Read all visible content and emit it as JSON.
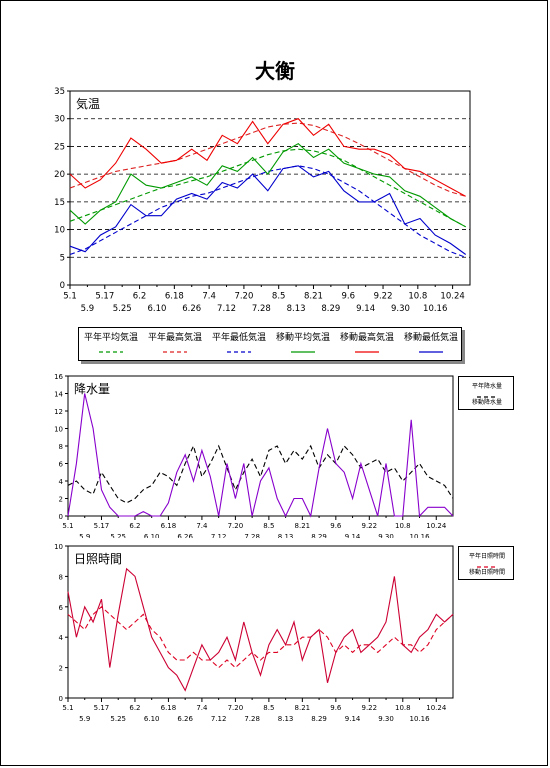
{
  "title": "大衡",
  "colors": {
    "normal_avg": "#009900",
    "normal_max": "#dd2222",
    "normal_min": "#0000cc",
    "obs_avg": "#009900",
    "obs_max": "#ee0000",
    "obs_min": "#0000cc",
    "normal_precip": "#000000",
    "obs_precip": "#8800cc",
    "normal_sun": "#dd0022",
    "obs_sun": "#cc0033"
  },
  "chart_data": [
    {
      "type": "line",
      "title": "気温",
      "ylim": [
        0,
        35
      ],
      "yticks": [
        "0",
        "5",
        "10",
        "15",
        "20",
        "25",
        "30",
        "35"
      ],
      "xticks_top": [
        "5.1",
        "5.17",
        "6.2",
        "6.18",
        "7.4",
        "7.20",
        "8.5",
        "8.21",
        "9.6",
        "9.22",
        "10.8",
        "10.24"
      ],
      "xticks_bottom": [
        "5.9",
        "5.25",
        "6.10",
        "6.26",
        "7.12",
        "7.28",
        "8.13",
        "8.29",
        "9.14",
        "9.30",
        "10.16"
      ],
      "grid": "dashed horizontal",
      "legend_placement": "bottom",
      "x": [
        1,
        8,
        15,
        22,
        29,
        36,
        43,
        50,
        57,
        64,
        71,
        78,
        85,
        92,
        99,
        106,
        113,
        120,
        127,
        134,
        141,
        148,
        155,
        162,
        169,
        176,
        183
      ],
      "series": [
        {
          "name": "平年平均気温",
          "style": "dashed",
          "color_key": "normal_avg",
          "values": [
            11.5,
            12.5,
            13.5,
            14.5,
            15.5,
            16.5,
            17.5,
            18.0,
            18.8,
            19.5,
            20.5,
            21.5,
            22.5,
            23.5,
            24.2,
            24.5,
            24.2,
            23.5,
            22.5,
            21.0,
            19.5,
            18.0,
            16.5,
            15.0,
            13.5,
            12.0,
            10.5
          ]
        },
        {
          "name": "平年最高気温",
          "style": "dashed",
          "color_key": "normal_max",
          "values": [
            17.5,
            18.5,
            19.5,
            20.5,
            21.0,
            21.5,
            22.0,
            22.5,
            23.5,
            24.5,
            25.5,
            26.5,
            27.5,
            28.5,
            29.0,
            29.2,
            28.8,
            27.8,
            26.8,
            25.5,
            24.0,
            22.5,
            21.0,
            19.5,
            18.0,
            16.8,
            16.0
          ]
        },
        {
          "name": "平年最低気温",
          "style": "dashed",
          "color_key": "normal_min",
          "values": [
            5.5,
            6.5,
            8.0,
            9.5,
            11.0,
            12.5,
            14.0,
            15.0,
            16.0,
            16.5,
            17.5,
            18.5,
            19.5,
            20.5,
            21.0,
            21.5,
            21.0,
            20.0,
            18.5,
            17.0,
            15.0,
            13.0,
            11.0,
            9.0,
            7.5,
            6.0,
            5.0
          ]
        },
        {
          "name": "移動平均気温",
          "style": "solid",
          "color_key": "obs_avg",
          "values": [
            13.5,
            11.0,
            13.5,
            15.0,
            20.0,
            18.0,
            17.5,
            18.5,
            19.5,
            18.0,
            21.5,
            20.5,
            23.0,
            20.0,
            24.0,
            25.5,
            23.0,
            24.5,
            22.0,
            21.0,
            20.0,
            19.5,
            17.0,
            16.0,
            14.0,
            12.0,
            10.5
          ]
        },
        {
          "name": "移動最高気温",
          "style": "solid",
          "color_key": "obs_max",
          "values": [
            20.0,
            17.5,
            19.0,
            22.0,
            26.5,
            24.5,
            22.0,
            22.5,
            24.5,
            22.5,
            27.0,
            25.5,
            29.5,
            25.5,
            29.0,
            30.0,
            27.0,
            29.0,
            25.0,
            24.5,
            24.5,
            23.5,
            21.0,
            20.5,
            19.0,
            17.5,
            16.0
          ]
        },
        {
          "name": "移動最低気温",
          "style": "solid",
          "color_key": "obs_min",
          "values": [
            7.0,
            6.0,
            9.0,
            10.5,
            14.5,
            12.5,
            12.5,
            15.5,
            16.5,
            15.5,
            18.5,
            17.5,
            20.0,
            17.0,
            21.0,
            21.5,
            19.5,
            20.5,
            17.0,
            15.0,
            15.0,
            16.5,
            11.0,
            12.0,
            9.0,
            7.5,
            5.5
          ]
        }
      ]
    },
    {
      "type": "line",
      "title": "降水量",
      "ylim": [
        0,
        16
      ],
      "yticks": [
        "0",
        "2",
        "4",
        "6",
        "8",
        "10",
        "12",
        "14",
        "16"
      ],
      "xticks_top": [
        "5.1",
        "5.17",
        "6.2",
        "6.18",
        "7.4",
        "7.20",
        "8.5",
        "8.21",
        "9.6",
        "9.22",
        "10.8",
        "10.24"
      ],
      "xticks_bottom": [
        "5.9",
        "5.25",
        "6.10",
        "6.26",
        "7.12",
        "7.28",
        "8.13",
        "8.29",
        "9.14",
        "9.30",
        "10.16"
      ],
      "grid": "none",
      "legend_placement": "right",
      "x": [
        1,
        5,
        9,
        13,
        17,
        21,
        25,
        29,
        33,
        37,
        41,
        45,
        49,
        53,
        57,
        61,
        65,
        69,
        73,
        77,
        81,
        85,
        89,
        93,
        97,
        101,
        105,
        109,
        113,
        117,
        121,
        125,
        129,
        133,
        137,
        141,
        145,
        149,
        153,
        157,
        161,
        165,
        169,
        173,
        177,
        181,
        185
      ],
      "series": [
        {
          "name": "平年降水量",
          "style": "dashed",
          "color_key": "normal_precip",
          "values": [
            3.5,
            4,
            3,
            2.5,
            5,
            3.5,
            2,
            1.5,
            2,
            3,
            3.5,
            5,
            4.5,
            3.5,
            6,
            8,
            4.5,
            6,
            8,
            5.5,
            3,
            5,
            6.5,
            4.5,
            7.5,
            8,
            6,
            7.5,
            6.5,
            8,
            5.5,
            7,
            6,
            8,
            7,
            5.5,
            6,
            6.5,
            5,
            5.5,
            4,
            5,
            6,
            4.5,
            4,
            3.5,
            2
          ]
        },
        {
          "name": "移動降水量",
          "style": "solid",
          "color_key": "obs_precip",
          "values": [
            0,
            6,
            14,
            10,
            3,
            1,
            0,
            0,
            0,
            0.5,
            0,
            0,
            1.5,
            5,
            7,
            4,
            7.5,
            4.5,
            0,
            6,
            2,
            6,
            0,
            4,
            5.5,
            2,
            0,
            2,
            2,
            0,
            5.5,
            10,
            6,
            5,
            2,
            6,
            3,
            0,
            6,
            0,
            0,
            11,
            0,
            1,
            1,
            1,
            0
          ]
        }
      ]
    },
    {
      "type": "line",
      "title": "日照時間",
      "ylim": [
        0,
        10
      ],
      "yticks": [
        "0",
        "2",
        "4",
        "6",
        "8",
        "10"
      ],
      "xticks_top": [
        "5.1",
        "5.17",
        "6.2",
        "6.18",
        "7.4",
        "7.20",
        "8.5",
        "8.21",
        "9.6",
        "9.22",
        "10.8",
        "10.24"
      ],
      "xticks_bottom": [
        "5.9",
        "5.25",
        "6.10",
        "6.26",
        "7.12",
        "7.28",
        "8.13",
        "8.29",
        "9.14",
        "9.30",
        "10.16"
      ],
      "grid": "none",
      "legend_placement": "right",
      "x": [
        1,
        5,
        9,
        13,
        17,
        21,
        25,
        29,
        33,
        37,
        41,
        45,
        49,
        53,
        57,
        61,
        65,
        69,
        73,
        77,
        81,
        85,
        89,
        93,
        97,
        101,
        105,
        109,
        113,
        117,
        121,
        125,
        129,
        133,
        137,
        141,
        145,
        149,
        153,
        157,
        161,
        165,
        169,
        173,
        177,
        181,
        185
      ],
      "series": [
        {
          "name": "平年日照時間",
          "style": "dashed",
          "color_key": "normal_sun",
          "values": [
            5.5,
            5,
            4.5,
            5.5,
            6,
            5.5,
            5,
            4.5,
            5,
            5.5,
            4.5,
            4,
            3,
            2.5,
            2.5,
            3,
            2.5,
            2.5,
            2,
            2.5,
            2,
            2.5,
            3,
            2.5,
            3,
            3,
            3.5,
            3.5,
            4,
            4,
            4.5,
            4,
            3,
            3.5,
            3,
            3.5,
            3.5,
            3,
            3.5,
            4,
            3.5,
            3.5,
            3,
            3.5,
            4.5,
            5,
            5.5
          ]
        },
        {
          "name": "移動日照時間",
          "style": "solid",
          "color_key": "obs_sun",
          "values": [
            7,
            4,
            6,
            5,
            6.5,
            2,
            5.5,
            8.5,
            8,
            6,
            4,
            3,
            2,
            1.5,
            0.5,
            2,
            3.5,
            2.5,
            3,
            4,
            2.5,
            5,
            3,
            1.5,
            3.5,
            4.5,
            3.5,
            5,
            2.5,
            4,
            4.5,
            1,
            3,
            4,
            4.5,
            3,
            3.5,
            4,
            5,
            8,
            3.5,
            3,
            4,
            4.5,
            5.5,
            5,
            5.5
          ]
        }
      ]
    }
  ]
}
